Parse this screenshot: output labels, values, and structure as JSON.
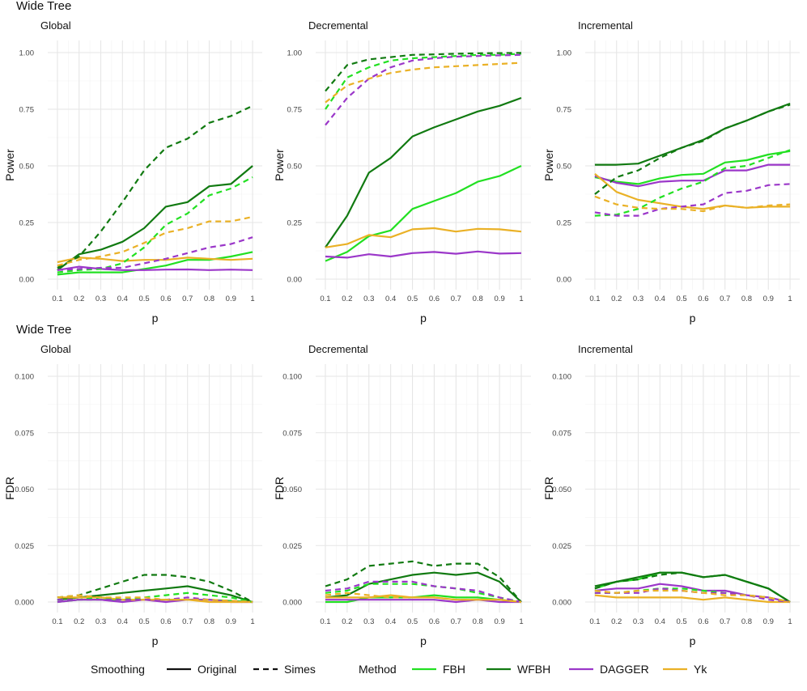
{
  "figure_titles": [
    "Wide Tree",
    "Wide Tree"
  ],
  "legend": {
    "smoothing_title": "Smoothing",
    "smoothing_items": [
      {
        "label": "Original",
        "dash": "solid"
      },
      {
        "label": "Simes",
        "dash": "dashed"
      }
    ],
    "method_title": "Method",
    "method_items": [
      {
        "label": "FBH",
        "color": "#22e022"
      },
      {
        "label": "WFBH",
        "color": "#117a11"
      },
      {
        "label": "DAGGER",
        "color": "#9b37c9"
      },
      {
        "label": "Yk",
        "color": "#eab126"
      }
    ]
  },
  "chart_data": [
    {
      "type": "line",
      "title": "Global",
      "xlabel": "p",
      "ylabel": "Power",
      "x": [
        0.1,
        0.2,
        0.3,
        0.4,
        0.5,
        0.6,
        0.7,
        0.8,
        0.9,
        1.0
      ],
      "xticks": [
        "0.1",
        "0.2",
        "0.3",
        "0.4",
        "0.5",
        "0.6",
        "0.7",
        "0.8",
        "0.9",
        "1"
      ],
      "ylim": [
        0,
        1.0
      ],
      "yticks": [
        "0.00",
        "0.25",
        "0.50",
        "0.75",
        "1.00"
      ],
      "grid": true,
      "series": [
        {
          "method": "FBH",
          "smoothing": "Original",
          "values": [
            0.02,
            0.03,
            0.03,
            0.03,
            0.045,
            0.06,
            0.085,
            0.085,
            0.1,
            0.12
          ]
        },
        {
          "method": "WFBH",
          "smoothing": "Original",
          "values": [
            0.04,
            0.11,
            0.13,
            0.165,
            0.225,
            0.32,
            0.34,
            0.41,
            0.42,
            0.5
          ]
        },
        {
          "method": "DAGGER",
          "smoothing": "Original",
          "values": [
            0.04,
            0.055,
            0.045,
            0.04,
            0.04,
            0.042,
            0.043,
            0.04,
            0.042,
            0.04
          ]
        },
        {
          "method": "Yk",
          "smoothing": "Original",
          "values": [
            0.075,
            0.095,
            0.09,
            0.08,
            0.085,
            0.085,
            0.095,
            0.09,
            0.085,
            0.09
          ]
        },
        {
          "method": "FBH",
          "smoothing": "Simes",
          "values": [
            0.03,
            0.04,
            0.045,
            0.07,
            0.14,
            0.24,
            0.29,
            0.37,
            0.4,
            0.45
          ]
        },
        {
          "method": "WFBH",
          "smoothing": "Simes",
          "values": [
            0.05,
            0.1,
            0.21,
            0.34,
            0.48,
            0.58,
            0.62,
            0.69,
            0.72,
            0.765
          ]
        },
        {
          "method": "DAGGER",
          "smoothing": "Simes",
          "values": [
            0.04,
            0.045,
            0.05,
            0.05,
            0.07,
            0.09,
            0.115,
            0.14,
            0.155,
            0.185
          ]
        },
        {
          "method": "Yk",
          "smoothing": "Simes",
          "values": [
            0.06,
            0.085,
            0.1,
            0.12,
            0.16,
            0.205,
            0.225,
            0.255,
            0.255,
            0.275
          ]
        }
      ]
    },
    {
      "type": "line",
      "title": "Decremental",
      "xlabel": "p",
      "ylabel": "Power",
      "x": [
        0.1,
        0.2,
        0.3,
        0.4,
        0.5,
        0.6,
        0.7,
        0.8,
        0.9,
        1.0
      ],
      "xticks": [
        "0.1",
        "0.2",
        "0.3",
        "0.4",
        "0.5",
        "0.6",
        "0.7",
        "0.8",
        "0.9",
        "1"
      ],
      "ylim": [
        0,
        1.0
      ],
      "yticks": [
        "0.00",
        "0.25",
        "0.50",
        "0.75",
        "1.00"
      ],
      "grid": true,
      "series": [
        {
          "method": "FBH",
          "smoothing": "Original",
          "values": [
            0.08,
            0.12,
            0.19,
            0.215,
            0.31,
            0.345,
            0.38,
            0.43,
            0.455,
            0.5
          ]
        },
        {
          "method": "WFBH",
          "smoothing": "Original",
          "values": [
            0.14,
            0.28,
            0.47,
            0.535,
            0.63,
            0.67,
            0.705,
            0.74,
            0.765,
            0.8
          ]
        },
        {
          "method": "DAGGER",
          "smoothing": "Original",
          "values": [
            0.1,
            0.095,
            0.11,
            0.1,
            0.115,
            0.12,
            0.112,
            0.122,
            0.113,
            0.115
          ]
        },
        {
          "method": "Yk",
          "smoothing": "Original",
          "values": [
            0.14,
            0.155,
            0.195,
            0.185,
            0.22,
            0.225,
            0.21,
            0.222,
            0.22,
            0.21
          ]
        },
        {
          "method": "FBH",
          "smoothing": "Simes",
          "values": [
            0.75,
            0.89,
            0.935,
            0.965,
            0.975,
            0.98,
            0.985,
            0.99,
            0.99,
            0.995
          ]
        },
        {
          "method": "WFBH",
          "smoothing": "Simes",
          "values": [
            0.83,
            0.945,
            0.97,
            0.98,
            0.99,
            0.992,
            0.995,
            0.997,
            0.998,
            0.999
          ]
        },
        {
          "method": "DAGGER",
          "smoothing": "Simes",
          "values": [
            0.68,
            0.8,
            0.885,
            0.935,
            0.965,
            0.975,
            0.982,
            0.985,
            0.988,
            0.99
          ]
        },
        {
          "method": "Yk",
          "smoothing": "Simes",
          "values": [
            0.78,
            0.855,
            0.885,
            0.91,
            0.925,
            0.935,
            0.94,
            0.945,
            0.95,
            0.955
          ]
        }
      ]
    },
    {
      "type": "line",
      "title": "Incremental",
      "xlabel": "p",
      "ylabel": "Power",
      "x": [
        0.1,
        0.2,
        0.3,
        0.4,
        0.5,
        0.6,
        0.7,
        0.8,
        0.9,
        1.0
      ],
      "xticks": [
        "0.1",
        "0.2",
        "0.3",
        "0.4",
        "0.5",
        "0.6",
        "0.7",
        "0.8",
        "0.9",
        "1"
      ],
      "ylim": [
        0,
        1.0
      ],
      "yticks": [
        "0.00",
        "0.25",
        "0.50",
        "0.75",
        "1.00"
      ],
      "grid": true,
      "series": [
        {
          "method": "FBH",
          "smoothing": "Original",
          "values": [
            0.45,
            0.43,
            0.42,
            0.445,
            0.46,
            0.465,
            0.515,
            0.525,
            0.55,
            0.565
          ]
        },
        {
          "method": "WFBH",
          "smoothing": "Original",
          "values": [
            0.505,
            0.505,
            0.51,
            0.545,
            0.58,
            0.615,
            0.665,
            0.7,
            0.74,
            0.775
          ]
        },
        {
          "method": "DAGGER",
          "smoothing": "Original",
          "values": [
            0.455,
            0.425,
            0.41,
            0.43,
            0.435,
            0.435,
            0.48,
            0.48,
            0.505,
            0.505
          ]
        },
        {
          "method": "Yk",
          "smoothing": "Original",
          "values": [
            0.465,
            0.385,
            0.35,
            0.335,
            0.32,
            0.31,
            0.325,
            0.315,
            0.32,
            0.32
          ]
        },
        {
          "method": "FBH",
          "smoothing": "Simes",
          "values": [
            0.28,
            0.285,
            0.31,
            0.36,
            0.4,
            0.43,
            0.49,
            0.5,
            0.535,
            0.57
          ]
        },
        {
          "method": "WFBH",
          "smoothing": "Simes",
          "values": [
            0.375,
            0.45,
            0.48,
            0.535,
            0.58,
            0.61,
            0.665,
            0.7,
            0.74,
            0.77
          ]
        },
        {
          "method": "DAGGER",
          "smoothing": "Simes",
          "values": [
            0.295,
            0.28,
            0.28,
            0.31,
            0.32,
            0.33,
            0.38,
            0.39,
            0.415,
            0.42
          ]
        },
        {
          "method": "Yk",
          "smoothing": "Simes",
          "values": [
            0.365,
            0.33,
            0.315,
            0.31,
            0.31,
            0.3,
            0.325,
            0.315,
            0.325,
            0.33
          ]
        }
      ]
    },
    {
      "type": "line",
      "title": "Global",
      "xlabel": "p",
      "ylabel": "FDR",
      "x": [
        0.1,
        0.2,
        0.3,
        0.4,
        0.5,
        0.6,
        0.7,
        0.8,
        0.9,
        1.0
      ],
      "xticks": [
        "0.1",
        "0.2",
        "0.3",
        "0.4",
        "0.5",
        "0.6",
        "0.7",
        "0.8",
        "0.9",
        "1"
      ],
      "ylim": [
        0,
        0.1
      ],
      "yticks": [
        "0.000",
        "0.025",
        "0.050",
        "0.075",
        "0.100"
      ],
      "grid": true,
      "series": [
        {
          "method": "FBH",
          "smoothing": "Original",
          "values": [
            0.0,
            0.001,
            0.001,
            0.001,
            0.001,
            0.001,
            0.001,
            0.001,
            0.0005,
            0.0
          ]
        },
        {
          "method": "WFBH",
          "smoothing": "Original",
          "values": [
            0.001,
            0.002,
            0.003,
            0.004,
            0.005,
            0.006,
            0.007,
            0.005,
            0.003,
            0.0
          ]
        },
        {
          "method": "DAGGER",
          "smoothing": "Original",
          "values": [
            0.0,
            0.001,
            0.001,
            0.0,
            0.001,
            0.0,
            0.001,
            0.001,
            0.0,
            0.0
          ]
        },
        {
          "method": "Yk",
          "smoothing": "Original",
          "values": [
            0.002,
            0.002,
            0.002,
            0.001,
            0.001,
            0.001,
            0.001,
            0.0,
            0.0,
            0.0
          ]
        },
        {
          "method": "FBH",
          "smoothing": "Simes",
          "values": [
            0.001,
            0.001,
            0.002,
            0.001,
            0.002,
            0.003,
            0.004,
            0.003,
            0.002,
            0.0
          ]
        },
        {
          "method": "WFBH",
          "smoothing": "Simes",
          "values": [
            0.002,
            0.003,
            0.006,
            0.009,
            0.012,
            0.012,
            0.011,
            0.009,
            0.005,
            0.0
          ]
        },
        {
          "method": "DAGGER",
          "smoothing": "Simes",
          "values": [
            0.001,
            0.001,
            0.001,
            0.001,
            0.001,
            0.001,
            0.002,
            0.001,
            0.0005,
            0.0
          ]
        },
        {
          "method": "Yk",
          "smoothing": "Simes",
          "values": [
            0.002,
            0.003,
            0.002,
            0.002,
            0.002,
            0.001,
            0.001,
            0.001,
            0.0005,
            0.0
          ]
        }
      ]
    },
    {
      "type": "line",
      "title": "Decremental",
      "xlabel": "p",
      "ylabel": "FDR",
      "x": [
        0.1,
        0.2,
        0.3,
        0.4,
        0.5,
        0.6,
        0.7,
        0.8,
        0.9,
        1.0
      ],
      "xticks": [
        "0.1",
        "0.2",
        "0.3",
        "0.4",
        "0.5",
        "0.6",
        "0.7",
        "0.8",
        "0.9",
        "1"
      ],
      "ylim": [
        0,
        0.1
      ],
      "yticks": [
        "0.000",
        "0.025",
        "0.050",
        "0.075",
        "0.100"
      ],
      "grid": true,
      "series": [
        {
          "method": "FBH",
          "smoothing": "Original",
          "values": [
            0.0,
            0.0,
            0.002,
            0.002,
            0.002,
            0.003,
            0.002,
            0.002,
            0.001,
            0.0
          ]
        },
        {
          "method": "WFBH",
          "smoothing": "Original",
          "values": [
            0.002,
            0.003,
            0.008,
            0.01,
            0.012,
            0.013,
            0.012,
            0.013,
            0.009,
            0.0
          ]
        },
        {
          "method": "DAGGER",
          "smoothing": "Original",
          "values": [
            0.001,
            0.001,
            0.001,
            0.001,
            0.001,
            0.001,
            0.0,
            0.001,
            0.0,
            0.0
          ]
        },
        {
          "method": "Yk",
          "smoothing": "Original",
          "values": [
            0.002,
            0.002,
            0.002,
            0.003,
            0.002,
            0.002,
            0.001,
            0.001,
            0.001,
            0.0
          ]
        },
        {
          "method": "FBH",
          "smoothing": "Simes",
          "values": [
            0.004,
            0.005,
            0.008,
            0.008,
            0.008,
            0.007,
            0.006,
            0.004,
            0.002,
            0.0
          ]
        },
        {
          "method": "WFBH",
          "smoothing": "Simes",
          "values": [
            0.007,
            0.01,
            0.016,
            0.017,
            0.018,
            0.016,
            0.017,
            0.017,
            0.011,
            0.0
          ]
        },
        {
          "method": "DAGGER",
          "smoothing": "Simes",
          "values": [
            0.005,
            0.006,
            0.009,
            0.009,
            0.009,
            0.007,
            0.006,
            0.005,
            0.002,
            0.0
          ]
        },
        {
          "method": "Yk",
          "smoothing": "Simes",
          "values": [
            0.003,
            0.004,
            0.003,
            0.002,
            0.002,
            0.002,
            0.001,
            0.001,
            0.001,
            0.0
          ]
        }
      ]
    },
    {
      "type": "line",
      "title": "Incremental",
      "xlabel": "p",
      "ylabel": "FDR",
      "x": [
        0.1,
        0.2,
        0.3,
        0.4,
        0.5,
        0.6,
        0.7,
        0.8,
        0.9,
        1.0
      ],
      "xticks": [
        "0.1",
        "0.2",
        "0.3",
        "0.4",
        "0.5",
        "0.6",
        "0.7",
        "0.8",
        "0.9",
        "1"
      ],
      "ylim": [
        0,
        0.1
      ],
      "yticks": [
        "0.000",
        "0.025",
        "0.050",
        "0.075",
        "0.100"
      ],
      "grid": true,
      "series": [
        {
          "method": "FBH",
          "smoothing": "Original",
          "values": [
            0.006,
            0.009,
            0.01,
            0.013,
            0.013,
            0.011,
            0.012,
            0.009,
            0.006,
            0.0
          ]
        },
        {
          "method": "WFBH",
          "smoothing": "Original",
          "values": [
            0.007,
            0.009,
            0.011,
            0.013,
            0.013,
            0.011,
            0.012,
            0.009,
            0.006,
            0.0
          ]
        },
        {
          "method": "DAGGER",
          "smoothing": "Original",
          "values": [
            0.005,
            0.006,
            0.006,
            0.008,
            0.007,
            0.005,
            0.005,
            0.003,
            0.002,
            0.0
          ]
        },
        {
          "method": "Yk",
          "smoothing": "Original",
          "values": [
            0.003,
            0.002,
            0.002,
            0.002,
            0.002,
            0.001,
            0.002,
            0.001,
            0.0,
            0.0
          ]
        },
        {
          "method": "FBH",
          "smoothing": "Simes",
          "values": [
            0.004,
            0.004,
            0.005,
            0.006,
            0.006,
            0.005,
            0.004,
            0.003,
            0.002,
            0.0
          ]
        },
        {
          "method": "WFBH",
          "smoothing": "Simes",
          "values": [
            0.006,
            0.009,
            0.01,
            0.012,
            0.013,
            0.011,
            0.012,
            0.009,
            0.006,
            0.0
          ]
        },
        {
          "method": "DAGGER",
          "smoothing": "Simes",
          "values": [
            0.004,
            0.004,
            0.004,
            0.006,
            0.005,
            0.004,
            0.004,
            0.003,
            0.001,
            0.0
          ]
        },
        {
          "method": "Yk",
          "smoothing": "Simes",
          "values": [
            0.005,
            0.004,
            0.005,
            0.005,
            0.005,
            0.004,
            0.003,
            0.003,
            0.002,
            0.0
          ]
        }
      ]
    }
  ]
}
